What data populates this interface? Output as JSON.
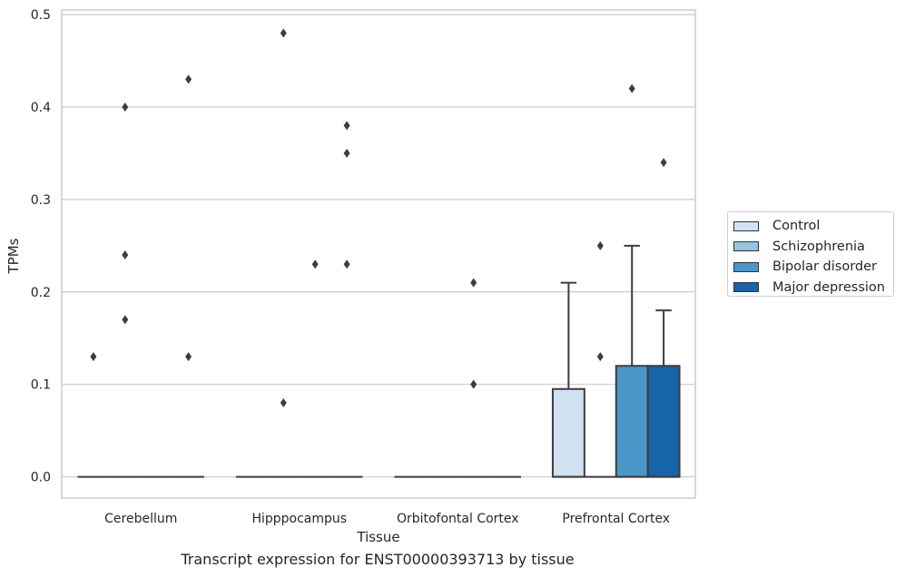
{
  "chart_data": {
    "type": "box",
    "xlabel": "Tissue",
    "ylabel": "TPMs",
    "caption": "Transcript expression for ENST00000393713 by tissue",
    "ylim": [
      -0.023,
      0.505
    ],
    "yticks": [
      "0.0",
      "0.1",
      "0.2",
      "0.3",
      "0.4",
      "0.5"
    ],
    "categories": [
      "Cerebellum",
      "Hipppocampus",
      "Orbitofontal Cortex",
      "Prefrontal Cortex"
    ],
    "legend_position": "right",
    "grid": "horizontal",
    "series": [
      {
        "name": "Control",
        "color": "#d0e1f2",
        "boxes": [
          {
            "q1": 0,
            "median": 0,
            "q3": 0,
            "whisker_low": 0,
            "whisker_high": 0,
            "outliers": [
              0.13
            ]
          },
          {
            "q1": 0,
            "median": 0,
            "q3": 0,
            "whisker_low": 0,
            "whisker_high": 0,
            "outliers": []
          },
          {
            "q1": 0,
            "median": 0,
            "q3": 0,
            "whisker_low": 0,
            "whisker_high": 0,
            "outliers": []
          },
          {
            "q1": 0,
            "median": 0,
            "q3": 0.095,
            "whisker_low": 0,
            "whisker_high": 0.21,
            "outliers": []
          }
        ]
      },
      {
        "name": "Schizophrenia",
        "color": "#94c4df",
        "boxes": [
          {
            "q1": 0,
            "median": 0,
            "q3": 0,
            "whisker_low": 0,
            "whisker_high": 0,
            "outliers": [
              0.4,
              0.24,
              0.17
            ]
          },
          {
            "q1": 0,
            "median": 0,
            "q3": 0,
            "whisker_low": 0,
            "whisker_high": 0,
            "outliers": [
              0.48,
              0.08
            ]
          },
          {
            "q1": 0,
            "median": 0,
            "q3": 0,
            "whisker_low": 0,
            "whisker_high": 0,
            "outliers": []
          },
          {
            "q1": 0,
            "median": 0,
            "q3": 0,
            "whisker_low": 0,
            "whisker_high": 0,
            "outliers": [
              0.25,
              0.13
            ]
          }
        ]
      },
      {
        "name": "Bipolar disorder",
        "color": "#4a98c9",
        "boxes": [
          {
            "q1": 0,
            "median": 0,
            "q3": 0,
            "whisker_low": 0,
            "whisker_high": 0,
            "outliers": []
          },
          {
            "q1": 0,
            "median": 0,
            "q3": 0,
            "whisker_low": 0,
            "whisker_high": 0,
            "outliers": [
              0.23
            ]
          },
          {
            "q1": 0,
            "median": 0,
            "q3": 0,
            "whisker_low": 0,
            "whisker_high": 0,
            "outliers": [
              0.21,
              0.1
            ]
          },
          {
            "q1": 0,
            "median": 0,
            "q3": 0.12,
            "whisker_low": 0,
            "whisker_high": 0.25,
            "outliers": [
              0.42
            ]
          }
        ]
      },
      {
        "name": "Major depression",
        "color": "#1764ab",
        "boxes": [
          {
            "q1": 0,
            "median": 0,
            "q3": 0,
            "whisker_low": 0,
            "whisker_high": 0,
            "outliers": [
              0.43,
              0.13
            ]
          },
          {
            "q1": 0,
            "median": 0,
            "q3": 0,
            "whisker_low": 0,
            "whisker_high": 0,
            "outliers": [
              0.38,
              0.35,
              0.23
            ]
          },
          {
            "q1": 0,
            "median": 0,
            "q3": 0,
            "whisker_low": 0,
            "whisker_high": 0,
            "outliers": []
          },
          {
            "q1": 0,
            "median": 0,
            "q3": 0.12,
            "whisker_low": 0,
            "whisker_high": 0.18,
            "outliers": [
              0.34
            ]
          }
        ]
      }
    ]
  }
}
